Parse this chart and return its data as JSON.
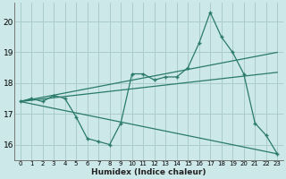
{
  "xlabel": "Humidex (Indice chaleur)",
  "background_color": "#cce8e8",
  "grid_color": "#aacccc",
  "line_color": "#2a7a6a",
  "xlim": [
    -0.5,
    23.5
  ],
  "ylim": [
    15.5,
    20.6
  ],
  "yticks": [
    16,
    17,
    18,
    19,
    20
  ],
  "xticks": [
    0,
    1,
    2,
    3,
    4,
    5,
    6,
    7,
    8,
    9,
    10,
    11,
    12,
    13,
    14,
    15,
    16,
    17,
    18,
    19,
    20,
    21,
    22,
    23
  ],
  "line1_x": [
    0,
    1,
    2,
    3,
    4,
    5,
    6,
    7,
    8,
    9,
    10,
    11,
    12,
    13,
    14,
    15,
    16,
    17,
    18,
    19,
    20,
    21,
    22,
    23
  ],
  "line1_y": [
    17.4,
    17.5,
    17.4,
    17.6,
    17.5,
    16.9,
    16.2,
    16.1,
    16.0,
    16.7,
    18.3,
    18.3,
    18.1,
    18.2,
    18.2,
    18.5,
    19.3,
    20.3,
    19.5,
    19.0,
    18.3,
    16.7,
    16.3,
    15.7
  ],
  "line2_x": [
    0,
    23
  ],
  "line2_y": [
    17.4,
    19.0
  ],
  "line3_x": [
    0,
    23
  ],
  "line3_y": [
    17.4,
    18.35
  ],
  "line4_x": [
    0,
    23
  ],
  "line4_y": [
    17.4,
    15.7
  ]
}
